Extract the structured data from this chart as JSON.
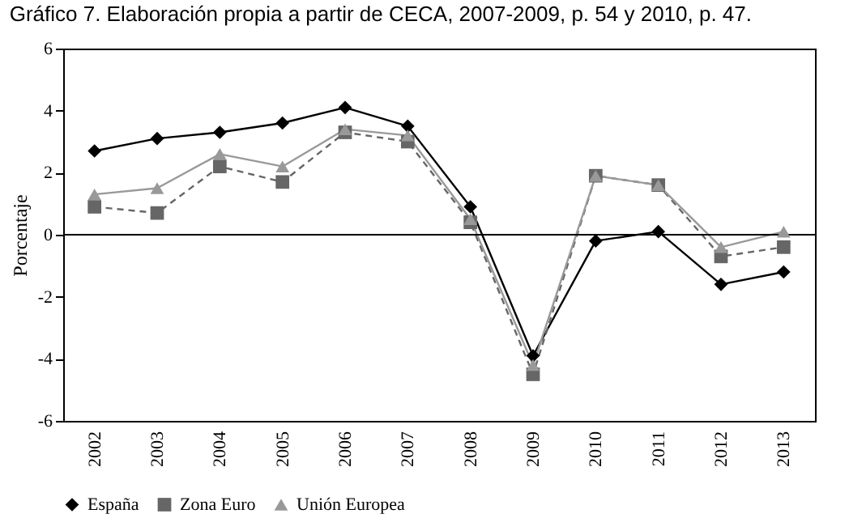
{
  "chart_data": {
    "type": "line",
    "title": "Gráfico 7. Elaboración propia a partir de CECA, 2007-2009, p. 54 y 2010, p. 47.",
    "ylabel": "Porcentaje",
    "categories": [
      "2002",
      "2003",
      "2004",
      "2005",
      "2006",
      "2007",
      "2008",
      "2009",
      "2010",
      "2011",
      "2012",
      "2013"
    ],
    "series": [
      {
        "name": "España",
        "color": "#000000",
        "marker": "diamond",
        "line_style": "solid",
        "values": [
          2.7,
          3.1,
          3.3,
          3.6,
          4.1,
          3.5,
          0.9,
          -3.9,
          -0.2,
          0.1,
          -1.6,
          -1.2
        ]
      },
      {
        "name": "Zona Euro",
        "color": "#666666",
        "marker": "square",
        "line_style": "dashed",
        "values": [
          0.9,
          0.7,
          2.2,
          1.7,
          3.3,
          3.0,
          0.4,
          -4.5,
          1.9,
          1.6,
          -0.7,
          -0.4
        ]
      },
      {
        "name": "Unión Europea",
        "color": "#999999",
        "marker": "triangle",
        "line_style": "solid",
        "values": [
          1.3,
          1.5,
          2.6,
          2.2,
          3.4,
          3.2,
          0.5,
          -4.2,
          1.9,
          1.6,
          -0.4,
          0.1
        ]
      }
    ],
    "ylim": [
      -6,
      6
    ],
    "yticks": [
      -6,
      -4,
      -2,
      0,
      2,
      4,
      6
    ],
    "ref_lines": [
      {
        "axis": "y",
        "value": 0,
        "color": "#000000"
      }
    ],
    "grid": false,
    "legend": "bottom"
  }
}
